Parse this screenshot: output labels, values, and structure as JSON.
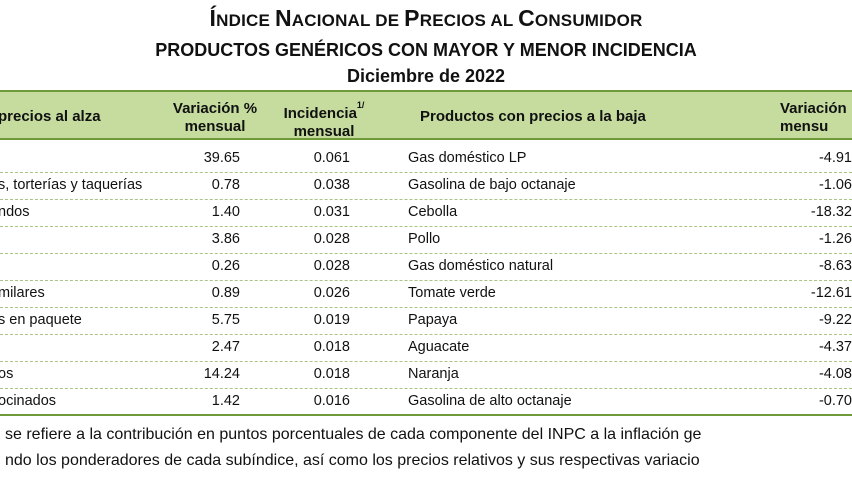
{
  "title": {
    "line1_big_a": "Í",
    "line1_small_a": "NDICE ",
    "line1_big_b": "N",
    "line1_small_b": "ACIONAL DE ",
    "line1_big_c": "P",
    "line1_small_c": "RECIOS AL ",
    "line1_big_d": "C",
    "line1_small_d": "ONSUMIDOR",
    "line2": "PRODUCTOS GENÉRICOS CON MAYOR Y MENOR INCIDENCIA",
    "line3": "Diciembre de 2022"
  },
  "headers": {
    "up": "precios al alza",
    "var": "Variación % mensual",
    "var_line1": "Variación %",
    "var_line2": "mensual",
    "inc_line1": "Incidencia",
    "inc_sup": "1/",
    "inc_line2": "mensual",
    "down": "Productos con precios a la baja",
    "var2_line1": "Variación",
    "var2_line2": "mensu"
  },
  "rows": [
    {
      "prod": "",
      "var": "39.65",
      "inc": "0.061",
      "low": "Gas doméstico LP",
      "var2": "-4.91"
    },
    {
      "prod": "s, torterías y taquerías",
      "var": "0.78",
      "inc": "0.038",
      "low": "Gasolina de bajo octanaje",
      "var2": "-1.06"
    },
    {
      "prod": "ndos",
      "var": "1.40",
      "inc": "0.031",
      "low": "Cebolla",
      "var2": "-18.32"
    },
    {
      "prod": "",
      "var": "3.86",
      "inc": "0.028",
      "low": "Pollo",
      "var2": "-1.26"
    },
    {
      "prod": "",
      "var": "0.26",
      "inc": "0.028",
      "low": "Gas doméstico natural",
      "var2": "-8.63"
    },
    {
      "prod": "milares",
      "var": "0.89",
      "inc": "0.026",
      "low": "Tomate verde",
      "var2": "-12.61"
    },
    {
      "prod": "s en paquete",
      "var": "5.75",
      "inc": "0.019",
      "low": "Papaya",
      "var2": "-9.22"
    },
    {
      "prod": "",
      "var": "2.47",
      "inc": "0.018",
      "low": "Aguacate",
      "var2": "-4.37"
    },
    {
      "prod": "os",
      "var": "14.24",
      "inc": "0.018",
      "low": "Naranja",
      "var2": "-4.08"
    },
    {
      "prod": "ocinados",
      "var": "1.42",
      "inc": "0.016",
      "low": "Gasolina de alto octanaje",
      "var2": "-0.70"
    }
  ],
  "footnote": {
    "line1": " se refiere a la contribución en puntos porcentuales de cada componente del INPC a la inflación ge",
    "line2": "ndo los ponderadores de cada subíndice, así como los precios relativos y sus respectivas variacio"
  }
}
